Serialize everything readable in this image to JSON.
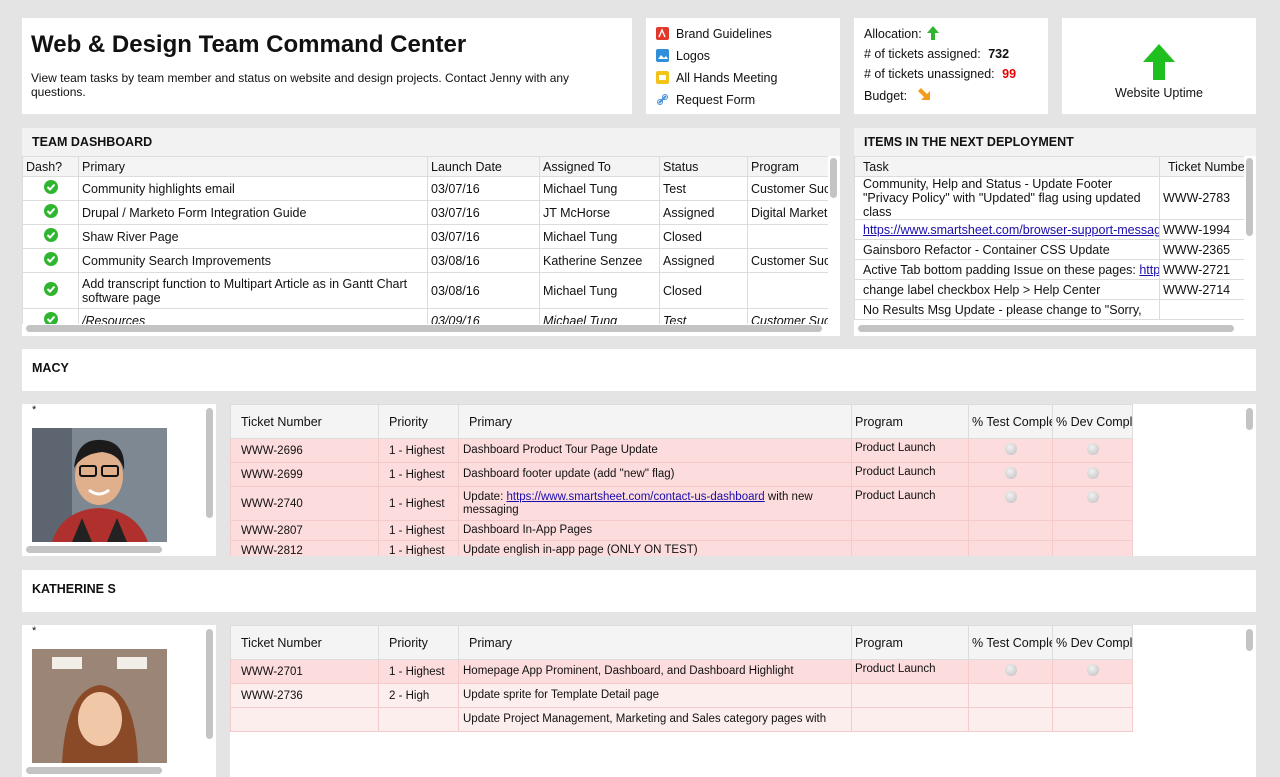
{
  "header": {
    "title": "Web & Design Team Command Center",
    "description": "View team tasks by team member and status on website and design projects. Contact Jenny with any questions."
  },
  "links": [
    "Brand Guidelines",
    "Logos",
    "All Hands Meeting",
    "Request Form"
  ],
  "metrics": {
    "allocation_label": "Allocation:",
    "assigned_label": "# of tickets assigned:",
    "assigned": 732,
    "unassigned_label": "# of tickets unassigned:",
    "unassigned": 99,
    "budget_label": "Budget:"
  },
  "uptime": {
    "label": "Website Uptime"
  },
  "team_dashboard": {
    "title": "TEAM DASHBOARD",
    "columns": [
      "Dash?",
      "Primary",
      "Launch Date",
      "Assigned To",
      "Status",
      "Program"
    ],
    "rows": [
      [
        "Community highlights email",
        "03/07/16",
        "Michael Tung",
        "Test",
        "Customer Suc"
      ],
      [
        "Drupal / Marketo Form Integration Guide",
        "03/07/16",
        "JT McHorse",
        "Assigned",
        "Digital Market"
      ],
      [
        "Shaw River Page",
        "03/07/16",
        "Michael Tung",
        "Closed"
      ],
      [
        "Community Search Improvements",
        "03/08/16",
        "Katherine Senzee",
        "Assigned",
        "Customer Suc"
      ],
      [
        "Add transcript function to Multipart Article as in Gantt Chart software page",
        "03/08/16",
        "Michael Tung",
        "Closed"
      ],
      [
        "/Resources",
        "03/09/16",
        "Michael Tung",
        "Test",
        "Customer Suc"
      ]
    ]
  },
  "deployment": {
    "title": "ITEMS IN THE NEXT DEPLOYMENT",
    "columns": [
      "Task",
      "Ticket Number"
    ],
    "rows": [
      {
        "task": {
          "text": "Community, Help and Status - Update Footer \"Privacy Policy\" with \"Updated\" flag using updated class"
        },
        "ticket": "WWW-2783"
      },
      {
        "task": {
          "link": "https://www.smartsheet.com/browser-support-messag"
        },
        "ticket": "WWW-1994"
      },
      {
        "task": {
          "text": "Gainsboro Refactor - Container CSS Update"
        },
        "ticket": "WWW-2365"
      },
      {
        "task": {
          "text": "Active Tab bottom padding Issue on these pages: ",
          "link": "http"
        },
        "ticket": "WWW-2721"
      },
      {
        "task": {
          "text": "change label checkbox Help > Help Center"
        },
        "ticket": "WWW-2714"
      },
      {
        "task": {
          "text": "No Results Msg Update - please change to \"Sorry,"
        }
      }
    ]
  },
  "members": [
    {
      "name": "MACY",
      "photo_label": "*",
      "columns": [
        "Ticket Number",
        "Priority",
        "Primary",
        "Program",
        "% Test Complete",
        "% Dev Complete"
      ],
      "rows": [
        {
          "ticket": "WWW-2696",
          "priority": "1 - Highest",
          "primary": {
            "text": "Dashboard Product Tour Page Update"
          },
          "program": "Product Launch"
        },
        {
          "ticket": "WWW-2699",
          "priority": "1 - Highest",
          "primary": {
            "text": "Dashboard footer update (add \"new\" flag)"
          },
          "program": "Product Launch"
        },
        {
          "ticket": "WWW-2740",
          "priority": "1 - Highest",
          "primary": {
            "text": "Update: ",
            "link": "https://www.smartsheet.com/contact-us-dashboard",
            "after": " with new messaging"
          },
          "program": "Product Launch"
        },
        {
          "ticket": "WWW-2807",
          "priority": "1 - Highest",
          "primary": {
            "text": "Dashboard In-App Pages"
          }
        },
        {
          "ticket": "WWW-2812",
          "priority": "1 - Highest",
          "primary": {
            "text": "Update english in-app page (ONLY ON TEST)"
          }
        }
      ]
    },
    {
      "name": "KATHERINE S",
      "photo_label": "*",
      "columns": [
        "Ticket Number",
        "Priority",
        "Primary",
        "Program",
        "% Test Complete",
        "% Dev Complete"
      ],
      "rows": [
        {
          "ticket": "WWW-2701",
          "priority": "1 - Highest",
          "primary": {
            "text": "Homepage App Prominent, Dashboard, and Dashboard Highlight"
          },
          "program": "Product Launch"
        },
        {
          "ticket": "WWW-2736",
          "priority": "2 - High",
          "primary": {
            "text": "Update sprite for Template Detail page"
          }
        },
        {
          "primary": {
            "text": "Update Project Management, Marketing and Sales category pages with"
          }
        }
      ]
    }
  ]
}
